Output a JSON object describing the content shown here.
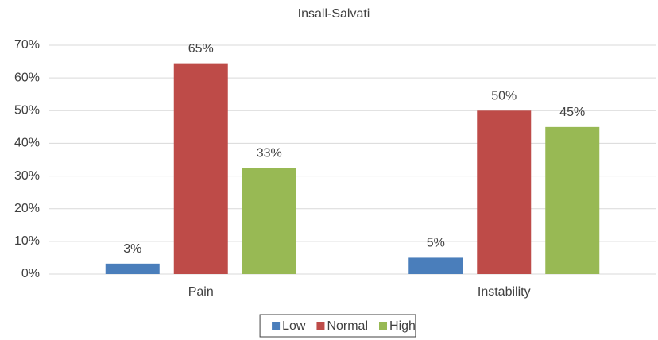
{
  "chart_data": {
    "type": "bar",
    "title": "Insall-Salvati",
    "categories": [
      "Pain",
      "Instability"
    ],
    "series": [
      {
        "name": "Low",
        "color": "#4a7ebb",
        "values": [
          3.2,
          5
        ],
        "value_labels": [
          "3%",
          "5%"
        ]
      },
      {
        "name": "Normal",
        "color": "#be4b48",
        "values": [
          64.5,
          50
        ],
        "value_labels": [
          "65%",
          "50%"
        ]
      },
      {
        "name": "High",
        "color": "#98b954",
        "values": [
          32.5,
          45
        ],
        "value_labels": [
          "33%",
          "45%"
        ]
      }
    ],
    "ylim": [
      0,
      70
    ],
    "yticks": [
      {
        "value": 0,
        "label": "0%"
      },
      {
        "value": 10,
        "label": "10%"
      },
      {
        "value": 20,
        "label": "20%"
      },
      {
        "value": 30,
        "label": "30%"
      },
      {
        "value": 40,
        "label": "40%"
      },
      {
        "value": 50,
        "label": "50%"
      },
      {
        "value": 60,
        "label": "60%"
      },
      {
        "value": 70,
        "label": "70%"
      }
    ],
    "grid": true,
    "legend": "bottom"
  }
}
